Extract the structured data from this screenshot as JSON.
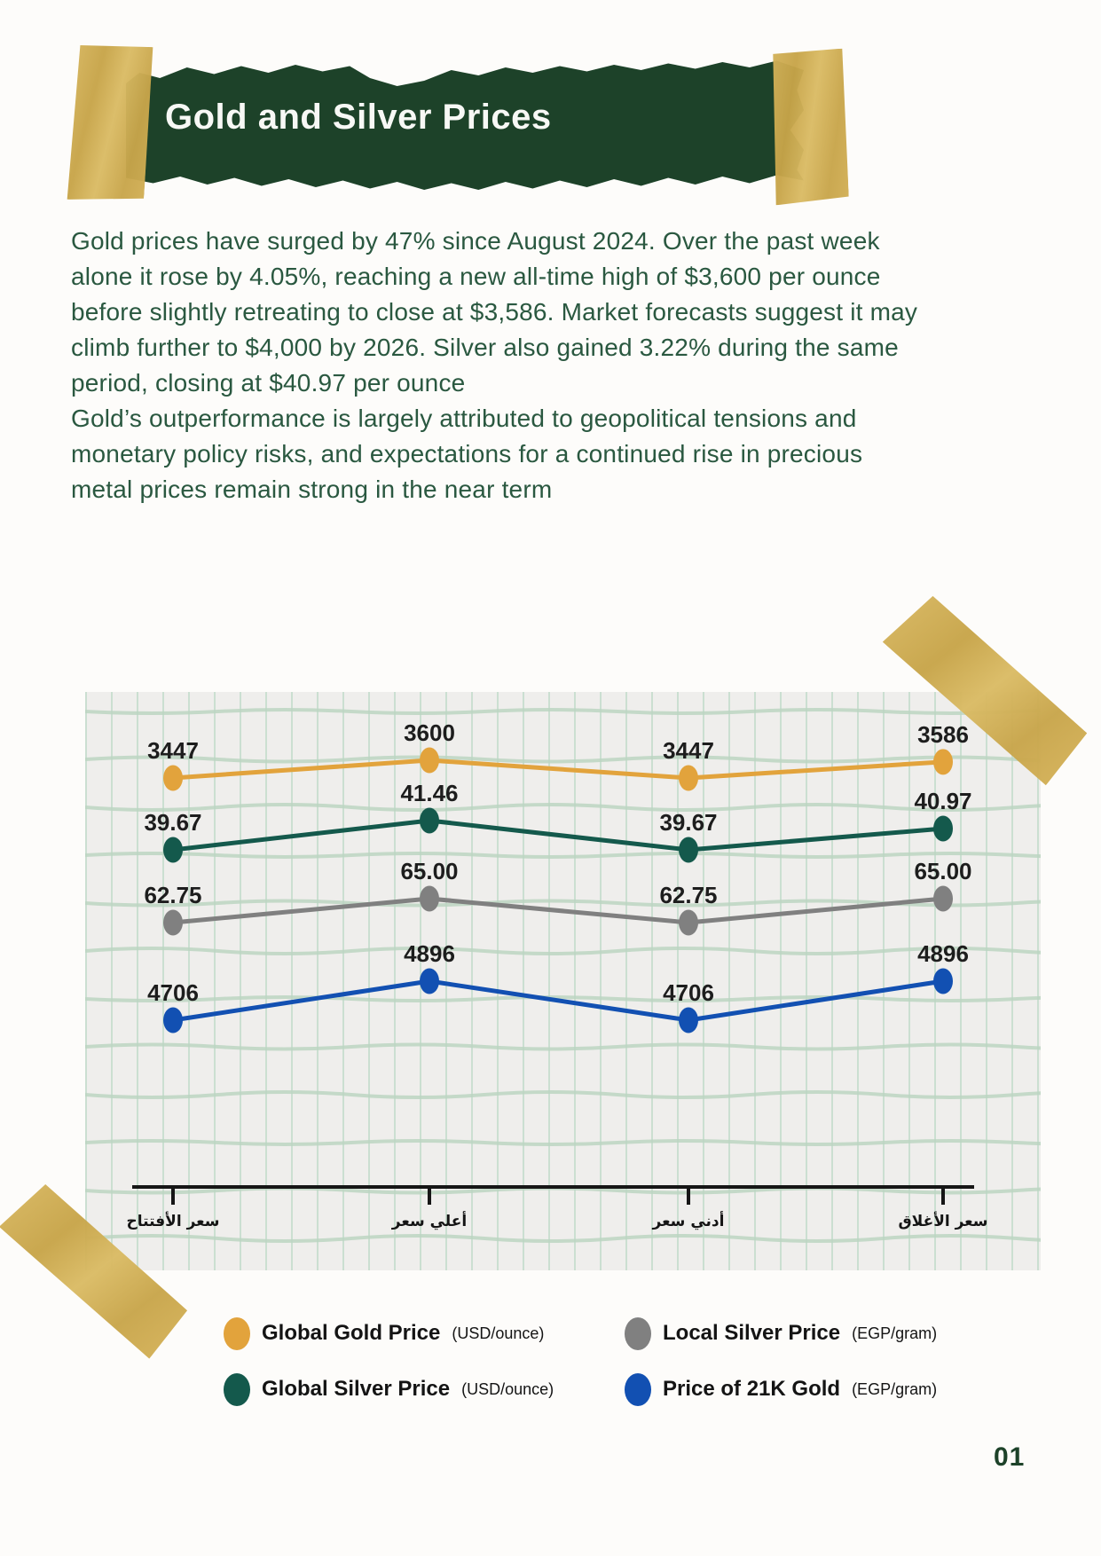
{
  "theme": {
    "banner_green": "#1D4229",
    "text_green": "#2A5840",
    "tape_gold": "#CDAB51",
    "paper": "#EFEEEC",
    "grid_vertical": "#CBDFD1",
    "grid_wavy": "#BCD5C2",
    "label_color": "#1D1D1D",
    "page_bg": "#FDFCFA"
  },
  "header": {
    "title": "Gold and Silver Prices"
  },
  "paragraphs": [
    "Gold prices have surged by 47% since August 2024. Over the past week alone it rose by 4.05%, reaching a new all-time high of $3,600 per ounce before slightly retreating to close at $3,586. Market forecasts suggest it may climb further to $4,000 by 2026. Silver also gained 3.22% during the same period, closing at $40.97 per ounce",
    "Gold’s outperformance is largely attributed to geopolitical tensions and monetary policy risks, and expectations for a continued rise in precious metal prices remain strong in the near term"
  ],
  "chart_data": {
    "type": "line",
    "title": "",
    "categories": [
      "سعر الأفتتاح",
      "أعلي سعر",
      "أدني سعر",
      "سعر الأغلاق"
    ],
    "series": [
      {
        "name": "Global Gold Price",
        "unit": "USD/ounce",
        "color": "#E2A33C",
        "values": [
          3447,
          3600,
          3447,
          3586
        ],
        "labels": [
          "3447",
          "3600",
          "3447",
          "3586"
        ]
      },
      {
        "name": "Global Silver Price",
        "unit": "USD/ounce",
        "color": "#14594C",
        "values": [
          39.67,
          41.46,
          39.67,
          40.97
        ],
        "labels": [
          "39.67",
          "41.46",
          "39.67",
          "40.97"
        ]
      },
      {
        "name": "Local Silver Price",
        "unit": "EGP/gram",
        "color": "#808080",
        "values": [
          62.75,
          65.0,
          62.75,
          65.0
        ],
        "labels": [
          "62.75",
          "65.00",
          "62.75",
          "65.00"
        ]
      },
      {
        "name": "Price of 21K Gold",
        "unit": "EGP/gram",
        "color": "#1250B2",
        "values": [
          4706,
          4896,
          4706,
          4896
        ],
        "labels": [
          "4706",
          "4896",
          "4706",
          "4896"
        ]
      }
    ],
    "legend_order": [
      0,
      2,
      1,
      3
    ],
    "value_labels_shown": true,
    "grid": "hand-drawn graph paper",
    "legend_position": "bottom"
  },
  "page": {
    "number": "01"
  }
}
